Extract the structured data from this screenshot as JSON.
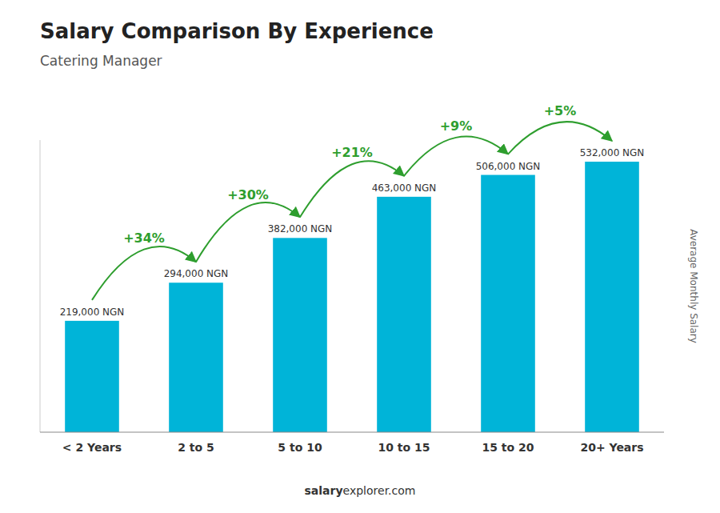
{
  "chart_data": {
    "type": "bar",
    "title": "Salary Comparison By Experience",
    "subtitle": "Catering Manager",
    "y_label": "Average Monthly Salary",
    "categories": [
      "< 2 Years",
      "2 to 5",
      "5 to 10",
      "10 to 15",
      "15 to 20",
      "20+ Years"
    ],
    "values": [
      219000,
      294000,
      382000,
      463000,
      506000,
      532000
    ],
    "value_labels": [
      "219,000 NGN",
      "294,000 NGN",
      "382,000 NGN",
      "463,000 NGN",
      "506,000 NGN",
      "532,000 NGN"
    ],
    "data_labels": true,
    "annotations": [
      "+34%",
      "+30%",
      "+21%",
      "+9%",
      "+5%"
    ],
    "footer": [
      "salary",
      "explorer.com"
    ],
    "color": "#00b4d8",
    "ylim": [
      0,
      574560
    ],
    "tick_labels": "x",
    "grid": false
  }
}
